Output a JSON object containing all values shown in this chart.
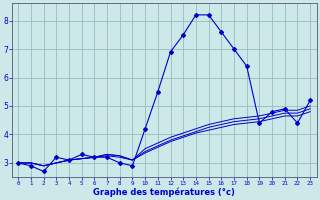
{
  "xlabel": "Graphe des températures (°c)",
  "x_hours": [
    0,
    1,
    2,
    3,
    4,
    5,
    6,
    7,
    8,
    9,
    10,
    11,
    12,
    13,
    14,
    15,
    16,
    17,
    18,
    19,
    20,
    21,
    22,
    23
  ],
  "temp_main": [
    3.0,
    2.9,
    2.7,
    3.2,
    3.1,
    3.3,
    3.2,
    3.2,
    3.0,
    2.9,
    4.2,
    5.5,
    6.9,
    7.5,
    8.2,
    8.2,
    7.6,
    7.0,
    6.4,
    4.4,
    4.8,
    4.9,
    4.4,
    5.2
  ],
  "line2": [
    3.0,
    3.0,
    2.9,
    3.0,
    3.1,
    3.15,
    3.2,
    3.3,
    3.25,
    3.1,
    3.5,
    3.7,
    3.9,
    4.05,
    4.2,
    4.35,
    4.45,
    4.55,
    4.6,
    4.65,
    4.75,
    4.85,
    4.85,
    5.0
  ],
  "line3": [
    3.0,
    3.0,
    2.9,
    3.0,
    3.1,
    3.15,
    3.2,
    3.3,
    3.25,
    3.1,
    3.4,
    3.6,
    3.8,
    3.95,
    4.1,
    4.25,
    4.35,
    4.45,
    4.5,
    4.55,
    4.65,
    4.75,
    4.75,
    4.9
  ],
  "line4": [
    3.0,
    3.0,
    2.9,
    3.0,
    3.1,
    3.15,
    3.2,
    3.25,
    3.2,
    3.1,
    3.35,
    3.55,
    3.75,
    3.9,
    4.05,
    4.15,
    4.25,
    4.35,
    4.4,
    4.45,
    4.55,
    4.65,
    4.65,
    4.8
  ],
  "line_color": "#0000cc",
  "bg_color": "#cce8e8",
  "grid_color": "#99bbbb",
  "ylim": [
    2.5,
    8.6
  ],
  "yticks": [
    3,
    4,
    5,
    6,
    7,
    8
  ],
  "xlim": [
    -0.5,
    23.5
  ]
}
